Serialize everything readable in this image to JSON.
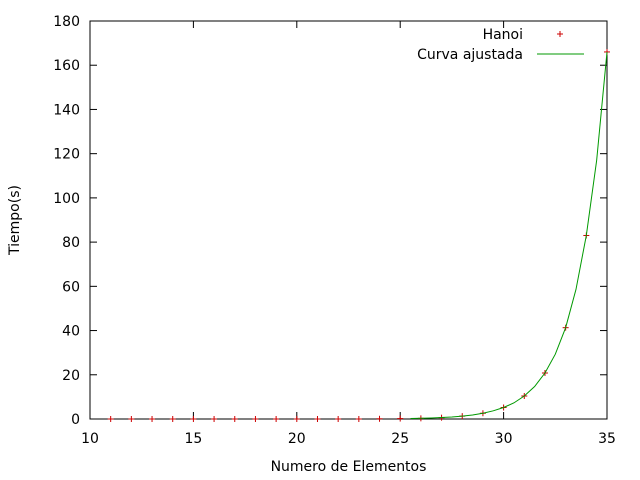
{
  "chart_data": {
    "type": "scatter",
    "title": "",
    "xlabel": "Numero de Elementos",
    "ylabel": "Tiempo(s)",
    "xlim": [
      10,
      35
    ],
    "ylim": [
      0,
      180
    ],
    "x_ticks": [
      10,
      15,
      20,
      25,
      30,
      35
    ],
    "y_ticks": [
      0,
      20,
      40,
      60,
      80,
      100,
      120,
      140,
      160,
      180
    ],
    "grid": false,
    "legend_position": "top-right",
    "series": [
      {
        "name": "Hanoi",
        "kind": "points",
        "marker": "+",
        "color": "#cc0000",
        "x": [
          11,
          12,
          13,
          14,
          15,
          16,
          17,
          18,
          19,
          20,
          21,
          22,
          23,
          24,
          25,
          26,
          27,
          28,
          29,
          30,
          31,
          32,
          33,
          34,
          35
        ],
        "y": [
          0,
          0,
          0,
          0,
          0,
          0,
          0,
          0,
          0,
          0,
          0,
          0,
          0,
          0.1,
          0.2,
          0.3,
          0.6,
          1.3,
          2.6,
          5.2,
          10.4,
          20.8,
          41.3,
          83,
          166
        ]
      },
      {
        "name": "Curva ajustada",
        "kind": "line",
        "color": "#009900",
        "x": [
          25.5,
          26,
          26.5,
          27,
          27.5,
          28,
          28.5,
          29,
          29.5,
          30,
          30.5,
          31,
          31.5,
          32,
          32.5,
          33,
          33.5,
          34,
          34.5,
          35
        ],
        "y": [
          0.23,
          0.32,
          0.46,
          0.65,
          0.92,
          1.3,
          1.8,
          2.6,
          3.7,
          5.2,
          7.3,
          10.4,
          14.7,
          20.8,
          29.3,
          41.3,
          58.6,
          83,
          117,
          166
        ]
      }
    ]
  }
}
